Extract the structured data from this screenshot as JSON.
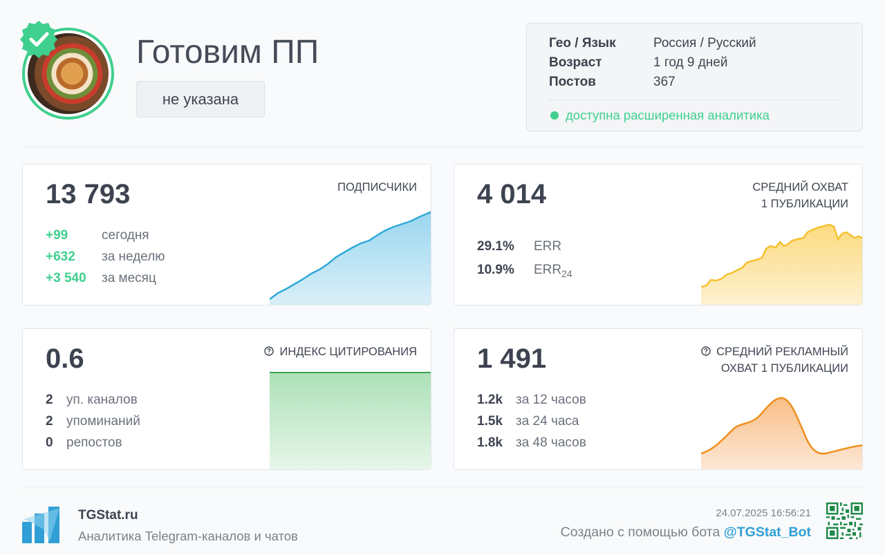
{
  "header": {
    "avatar_alt": "",
    "title": "Готовим ПП",
    "category": "не указана"
  },
  "info": {
    "rows": [
      {
        "key": "Гео / Язык",
        "value": "Россия / Русский"
      },
      {
        "key": "Возраст",
        "value": "1 год 9 дней"
      },
      {
        "key": "Постов",
        "value": "367"
      }
    ],
    "analytics_note": "доступна расширенная аналитика"
  },
  "cards": {
    "subscribers": {
      "value": "13 793",
      "label": "ПОДПИСЧИКИ",
      "stats": [
        {
          "value": "+99",
          "desc": "сегодня"
        },
        {
          "value": "+632",
          "desc": "за неделю"
        },
        {
          "value": "+3 540",
          "desc": "за месяц"
        }
      ]
    },
    "reach": {
      "value": "4 014",
      "label_line1": "СРЕДНИЙ ОХВАТ",
      "label_line2": "1 ПУБЛИКАЦИИ",
      "stats": [
        {
          "value": "29.1%",
          "desc": "ERR",
          "sub": ""
        },
        {
          "value": "10.9%",
          "desc": "ERR",
          "sub": "24"
        }
      ]
    },
    "citation": {
      "value": "0.6",
      "label": "ИНДЕКС ЦИТИРОВАНИЯ",
      "stats": [
        {
          "value": "2",
          "desc": "уп. каналов"
        },
        {
          "value": "2",
          "desc": "упоминаний"
        },
        {
          "value": "0",
          "desc": "репостов"
        }
      ]
    },
    "ad_reach": {
      "value": "1 491",
      "label_line1": "СРЕДНИЙ РЕКЛАМНЫЙ",
      "label_line2": "ОХВАТ 1 ПУБЛИКАЦИИ",
      "stats": [
        {
          "value": "1.2k",
          "desc": "за 12 часов"
        },
        {
          "value": "1.5k",
          "desc": "за 24 часа"
        },
        {
          "value": "1.8k",
          "desc": "за 48 часов"
        }
      ]
    }
  },
  "footer": {
    "brand": "TGStat.ru",
    "tagline": "Аналитика Telegram-каналов и чатов",
    "date": "24.07.2025 16:56:21",
    "created_prefix": "Создано с помощью бота ",
    "bot": "@TGStat_Bot"
  },
  "colors": {
    "accent_green": "#3fcf8e",
    "subscribers_line": "#2ea8d8",
    "reach_line": "#f5c12e",
    "citation_line": "#3aa655",
    "ad_reach_line": "#ef8f1e",
    "bot_link": "#2f9fd6"
  },
  "icons": [
    "verified-check-icon",
    "help-circle-icon",
    "tgstat-logo-icon",
    "qr-code-icon"
  ]
}
